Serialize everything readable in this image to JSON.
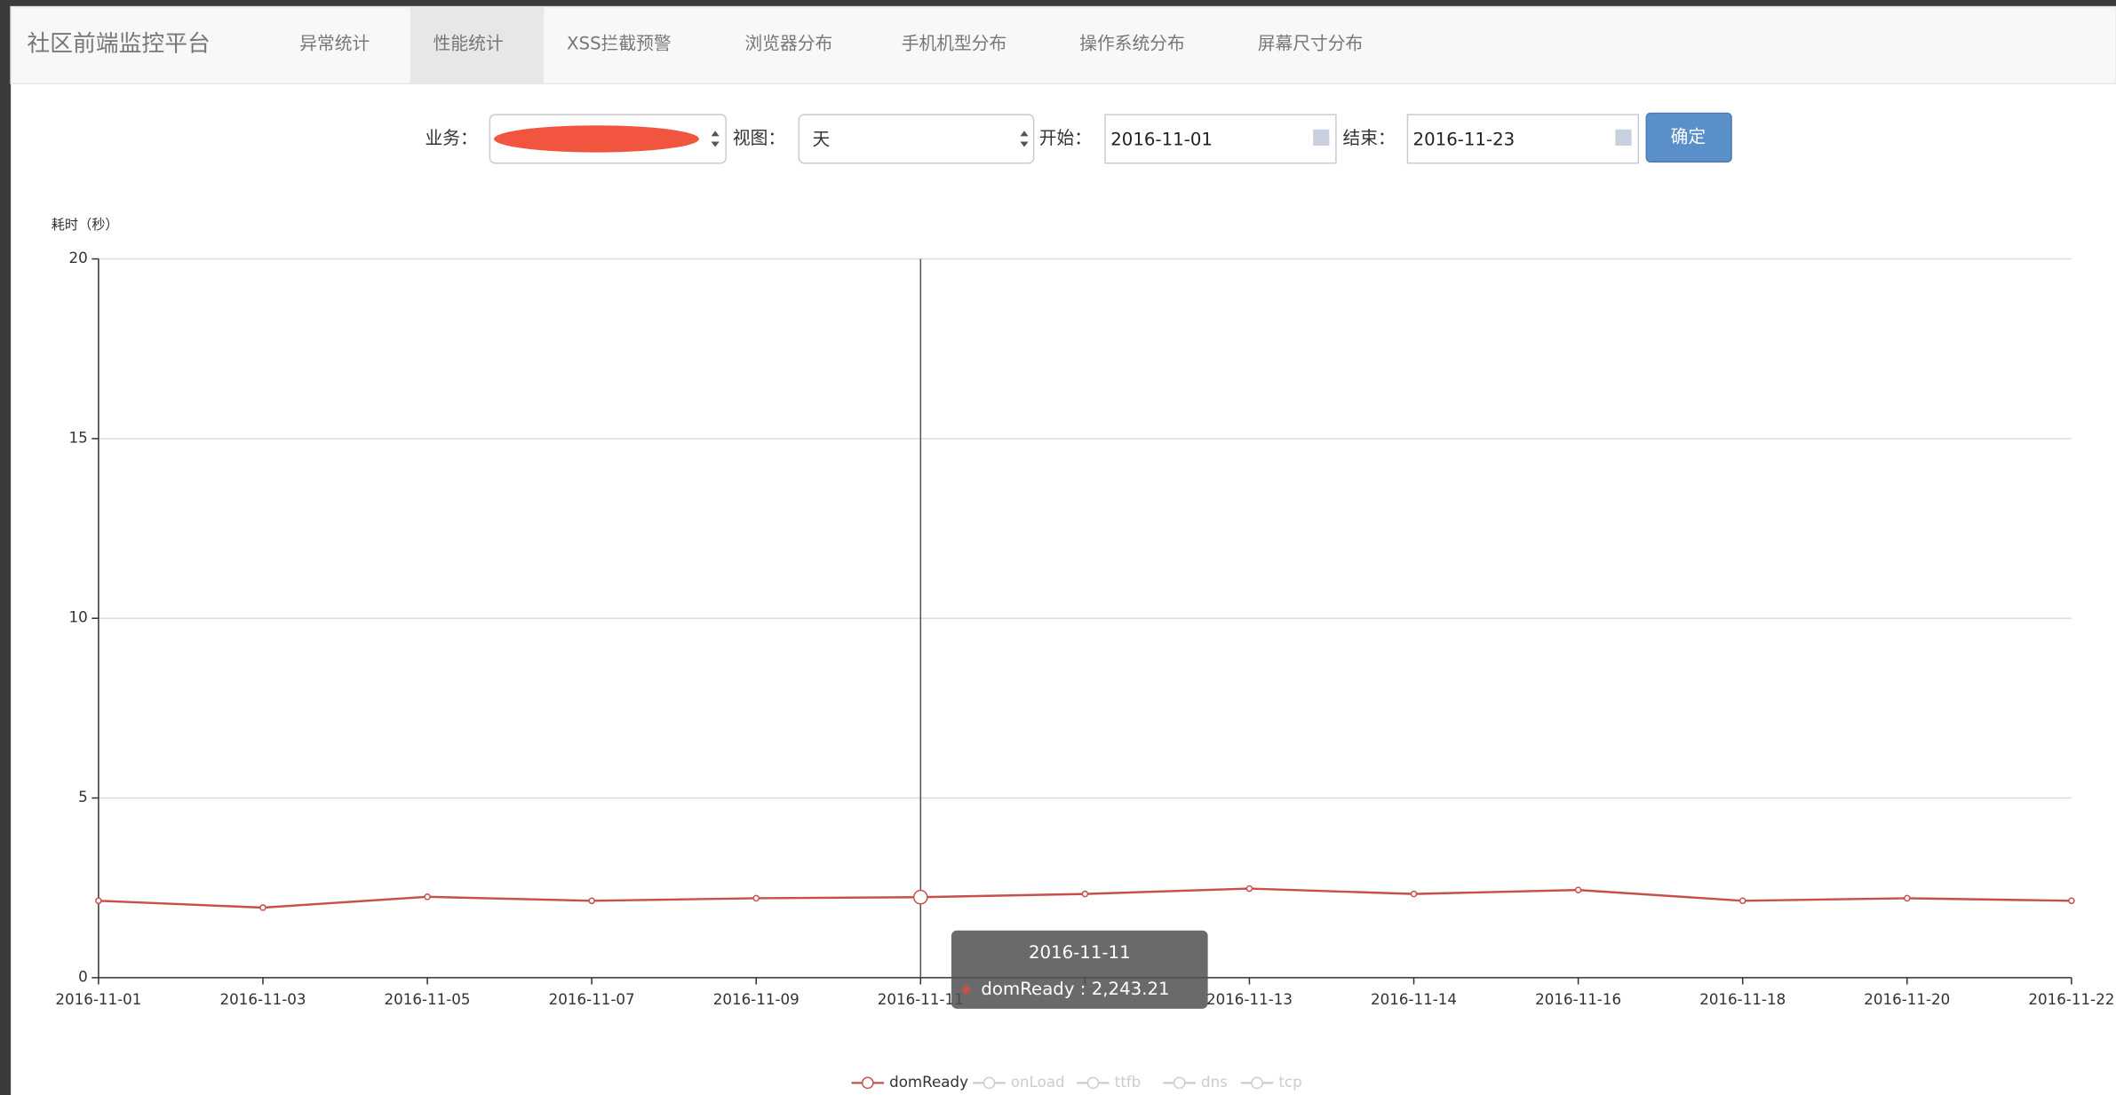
{
  "nav": {
    "brand": "社区前端监控平台",
    "items": [
      "异常统计",
      "性能统计",
      "XSS拦截预警",
      "浏览器分布",
      "手机机型分布",
      "操作系统分布",
      "屏幕尺寸分布"
    ],
    "active": 1
  },
  "form": {
    "business_label": "业务：",
    "view_label": "视图：",
    "view": "天",
    "start_label": "开始：",
    "start": "2016-11-01",
    "end_label": "结束：",
    "end": "2016-11-23",
    "button": "确定"
  },
  "chart_data": {
    "type": "line",
    "y_label": "耗时（秒）",
    "categories": [
      "2016-11-01",
      "2016-11-03",
      "2016-11-05",
      "2016-11-07",
      "2016-11-09",
      "2016-11-11",
      null,
      "2016-11-13",
      "2016-11-14",
      "2016-11-16",
      "2016-11-18",
      "2016-11-20",
      "2016-11-22"
    ],
    "series": [
      {
        "name": "domReady",
        "color": "#c9504a",
        "values": [
          2.14,
          1.95,
          2.25,
          2.14,
          2.21,
          2.24,
          2.33,
          2.48,
          2.33,
          2.44,
          2.14,
          2.21,
          2.14
        ]
      }
    ],
    "legend_inactive": [
      "onLoad",
      "ttfb",
      "dns",
      "tcp"
    ],
    "legend_position": "bottom",
    "ylim": [
      0,
      20
    ],
    "yticks": [
      0,
      5,
      10,
      15,
      20
    ],
    "grid": true,
    "tooltip": {
      "index": 5,
      "lines": [
        "2016-11-11",
        "domReady : 2,243.21"
      ]
    }
  }
}
